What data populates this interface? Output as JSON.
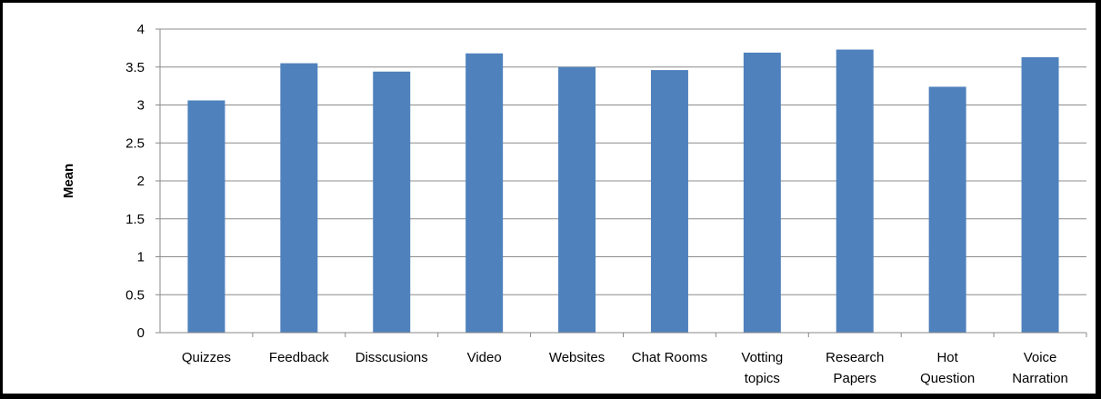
{
  "chart_data": {
    "type": "bar",
    "title": "",
    "xlabel": "",
    "ylabel": "Mean",
    "ylim": [
      0,
      4
    ],
    "yticks": [
      "0",
      "0.5",
      "1",
      "1.5",
      "2",
      "2.5",
      "3",
      "3.5",
      "4"
    ],
    "grid": true,
    "legend": "none",
    "bar_color": "#4f81bd",
    "categories": [
      [
        "Quizzes"
      ],
      [
        "Feedback"
      ],
      [
        "Disscusions"
      ],
      [
        "Video"
      ],
      [
        "Websites"
      ],
      [
        "Chat Rooms"
      ],
      [
        "Votting",
        "topics"
      ],
      [
        "Research",
        "Papers"
      ],
      [
        "Hot",
        "Question"
      ],
      [
        "Voice",
        "Narration"
      ]
    ],
    "values": [
      3.06,
      3.55,
      3.44,
      3.68,
      3.5,
      3.46,
      3.69,
      3.73,
      3.24,
      3.63
    ]
  }
}
